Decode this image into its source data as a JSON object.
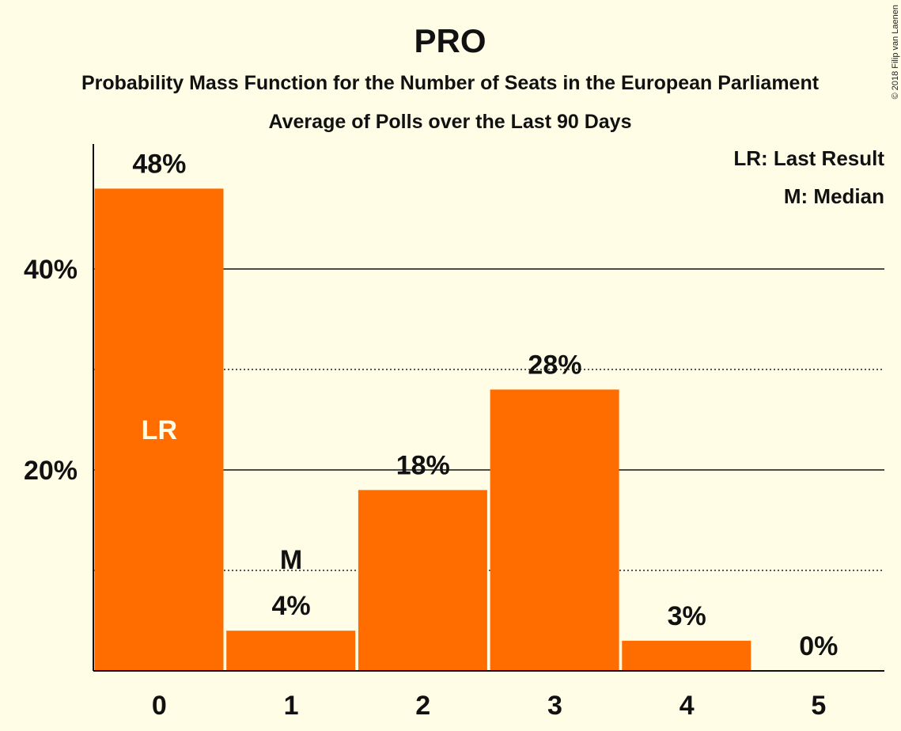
{
  "copyright": "© 2018 Filip van Laenen",
  "legend": {
    "last_result": "LR: Last Result",
    "median": "M: Median"
  },
  "colors": {
    "background": "#fffde6",
    "bar": "#ff6d00",
    "text": "#111111"
  },
  "chart_data": {
    "type": "bar",
    "title": "PRO",
    "subtitle": "Probability Mass Function for the Number of Seats in the European Parliament",
    "subtitle2": "Average of Polls over the Last 90 Days",
    "xlabel": "",
    "ylabel": "",
    "categories": [
      "0",
      "1",
      "2",
      "3",
      "4",
      "5"
    ],
    "values": [
      48,
      4,
      18,
      28,
      3,
      0
    ],
    "value_labels": [
      "48%",
      "4%",
      "18%",
      "28%",
      "3%",
      "0%"
    ],
    "ylim": [
      0,
      52
    ],
    "yticks": [
      {
        "value": 20,
        "label": "20%"
      },
      {
        "value": 40,
        "label": "40%"
      }
    ],
    "dotted_gridlines": [
      10,
      30
    ],
    "legend_position": "top-right",
    "markers": [
      {
        "category": "0",
        "label": "LR",
        "meaning": "Last Result"
      },
      {
        "category": "1",
        "label": "M",
        "meaning": "Median"
      }
    ]
  }
}
